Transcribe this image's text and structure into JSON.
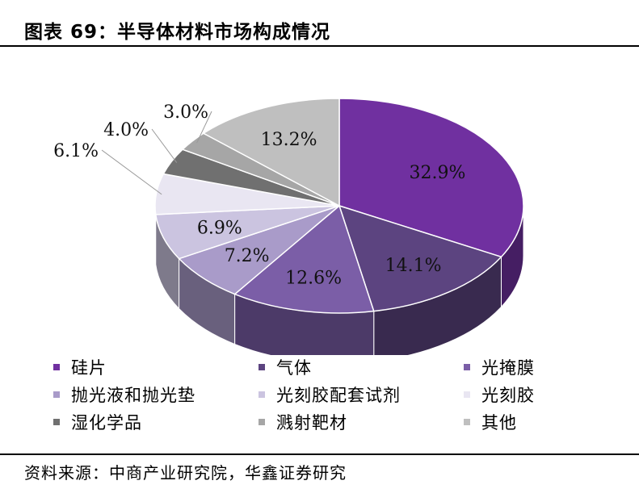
{
  "header": {
    "title": "图表 69：半导体材料市场构成情况"
  },
  "footer": {
    "source": "资料来源：中商产业研究院，华鑫证券研究"
  },
  "chart_data": {
    "type": "pie",
    "style": "3d",
    "start_position": "top",
    "direction": "clockwise",
    "legend_position": "bottom",
    "categories": [
      "硅片",
      "气体",
      "光掩膜",
      "抛光液和抛光垫",
      "光刻胶配套试剂",
      "光刻胶",
      "湿化学品",
      "溅射靶材",
      "其他"
    ],
    "values": [
      32.9,
      14.1,
      12.6,
      7.2,
      6.9,
      6.1,
      4.0,
      3.0,
      13.2
    ],
    "labels": [
      "32.9%",
      "14.1%",
      "12.6%",
      "7.2%",
      "6.9%",
      "6.1%",
      "4.0%",
      "3.0%",
      "13.2%"
    ],
    "colors": [
      "#7030a0",
      "#5c4480",
      "#7b5ea7",
      "#a99bc9",
      "#cbc4e0",
      "#e9e6f2",
      "#707070",
      "#a6a6a6",
      "#bfbfbf"
    ]
  }
}
